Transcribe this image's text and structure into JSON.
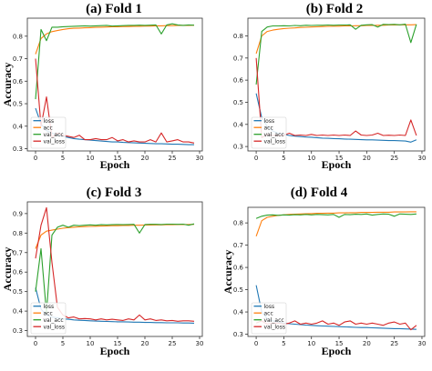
{
  "colors": {
    "loss": "#1f77b4",
    "acc": "#ff7f0e",
    "val_acc": "#2ca02c",
    "val_loss": "#d62728"
  },
  "chart_data": [
    {
      "type": "line",
      "title": "(a) Fold 1",
      "xlabel": "Epoch",
      "ylabel": "Accuracy",
      "xlim": [
        -1.5,
        30.5
      ],
      "ylim": [
        0.29,
        0.88
      ],
      "xticks": [
        0,
        5,
        10,
        15,
        20,
        25,
        30
      ],
      "yticks": [
        0.3,
        0.4,
        0.5,
        0.6,
        0.7,
        0.8
      ],
      "legend_position": "lower-left",
      "x": [
        0,
        1,
        2,
        3,
        4,
        5,
        6,
        7,
        8,
        9,
        10,
        11,
        12,
        13,
        14,
        15,
        16,
        17,
        18,
        19,
        20,
        21,
        22,
        23,
        24,
        25,
        26,
        27,
        28,
        29
      ],
      "series": [
        {
          "name": "loss",
          "values": [
            0.48,
            0.41,
            0.38,
            0.37,
            0.36,
            0.355,
            0.35,
            0.345,
            0.342,
            0.34,
            0.338,
            0.336,
            0.334,
            0.332,
            0.33,
            0.33,
            0.328,
            0.327,
            0.326,
            0.325,
            0.324,
            0.323,
            0.322,
            0.322,
            0.321,
            0.32,
            0.32,
            0.319,
            0.318,
            0.318
          ]
        },
        {
          "name": "acc",
          "values": [
            0.72,
            0.79,
            0.81,
            0.82,
            0.825,
            0.83,
            0.833,
            0.835,
            0.836,
            0.837,
            0.838,
            0.839,
            0.84,
            0.841,
            0.842,
            0.842,
            0.843,
            0.843,
            0.844,
            0.844,
            0.845,
            0.845,
            0.846,
            0.846,
            0.847,
            0.847,
            0.848,
            0.848,
            0.848,
            0.849
          ]
        },
        {
          "name": "val_acc",
          "values": [
            0.52,
            0.83,
            0.78,
            0.84,
            0.84,
            0.842,
            0.843,
            0.844,
            0.845,
            0.846,
            0.845,
            0.846,
            0.847,
            0.848,
            0.845,
            0.846,
            0.847,
            0.848,
            0.848,
            0.849,
            0.848,
            0.849,
            0.85,
            0.81,
            0.85,
            0.855,
            0.85,
            0.848,
            0.85,
            0.849
          ]
        },
        {
          "name": "val_loss",
          "values": [
            0.7,
            0.4,
            0.53,
            0.35,
            0.37,
            0.36,
            0.355,
            0.35,
            0.36,
            0.34,
            0.34,
            0.345,
            0.34,
            0.34,
            0.35,
            0.335,
            0.34,
            0.33,
            0.335,
            0.33,
            0.33,
            0.34,
            0.33,
            0.37,
            0.33,
            0.335,
            0.34,
            0.33,
            0.33,
            0.325
          ]
        }
      ]
    },
    {
      "type": "line",
      "title": "(b) Fold 2",
      "xlabel": "Epoch",
      "ylabel": "",
      "xlim": [
        -1.5,
        30.5
      ],
      "ylim": [
        0.28,
        0.88
      ],
      "xticks": [
        0,
        5,
        10,
        15,
        20,
        25,
        30
      ],
      "yticks": [
        0.3,
        0.4,
        0.5,
        0.6,
        0.7,
        0.8
      ],
      "legend_position": "lower-left",
      "x": [
        0,
        1,
        2,
        3,
        4,
        5,
        6,
        7,
        8,
        9,
        10,
        11,
        12,
        13,
        14,
        15,
        16,
        17,
        18,
        19,
        20,
        21,
        22,
        23,
        24,
        25,
        26,
        27,
        28,
        29
      ],
      "series": [
        {
          "name": "loss",
          "values": [
            0.54,
            0.43,
            0.39,
            0.37,
            0.36,
            0.355,
            0.35,
            0.347,
            0.345,
            0.343,
            0.342,
            0.34,
            0.338,
            0.337,
            0.336,
            0.335,
            0.334,
            0.333,
            0.332,
            0.331,
            0.33,
            0.33,
            0.329,
            0.328,
            0.327,
            0.327,
            0.326,
            0.325,
            0.32,
            0.33
          ]
        },
        {
          "name": "acc",
          "values": [
            0.72,
            0.8,
            0.82,
            0.826,
            0.83,
            0.833,
            0.835,
            0.836,
            0.838,
            0.839,
            0.84,
            0.841,
            0.842,
            0.843,
            0.844,
            0.844,
            0.845,
            0.845,
            0.846,
            0.846,
            0.847,
            0.847,
            0.848,
            0.848,
            0.849,
            0.849,
            0.85,
            0.85,
            0.85,
            0.851
          ]
        },
        {
          "name": "val_acc",
          "values": [
            0.58,
            0.82,
            0.84,
            0.845,
            0.845,
            0.846,
            0.845,
            0.847,
            0.846,
            0.848,
            0.847,
            0.848,
            0.848,
            0.849,
            0.848,
            0.849,
            0.849,
            0.85,
            0.83,
            0.848,
            0.85,
            0.851,
            0.84,
            0.852,
            0.851,
            0.852,
            0.85,
            0.853,
            0.77,
            0.852
          ]
        },
        {
          "name": "val_loss",
          "values": [
            0.7,
            0.34,
            0.355,
            0.35,
            0.35,
            0.352,
            0.36,
            0.35,
            0.352,
            0.35,
            0.355,
            0.35,
            0.352,
            0.35,
            0.352,
            0.35,
            0.352,
            0.35,
            0.37,
            0.352,
            0.35,
            0.352,
            0.36,
            0.35,
            0.351,
            0.35,
            0.352,
            0.35,
            0.42,
            0.35
          ]
        }
      ]
    },
    {
      "type": "line",
      "title": "(c) Fold 3",
      "xlabel": "Epoch",
      "ylabel": "Accuracy",
      "xlim": [
        -1.5,
        30.5
      ],
      "ylim": [
        0.27,
        0.96
      ],
      "xticks": [
        0,
        5,
        10,
        15,
        20,
        25,
        30
      ],
      "yticks": [
        0.3,
        0.4,
        0.5,
        0.6,
        0.7,
        0.8,
        0.9
      ],
      "legend_position": "lower-left",
      "x": [
        0,
        1,
        2,
        3,
        4,
        5,
        6,
        7,
        8,
        9,
        10,
        11,
        12,
        13,
        14,
        15,
        16,
        17,
        18,
        19,
        20,
        21,
        22,
        23,
        24,
        25,
        26,
        27,
        28,
        29
      ],
      "series": [
        {
          "name": "loss",
          "values": [
            0.52,
            0.41,
            0.38,
            0.37,
            0.365,
            0.36,
            0.358,
            0.355,
            0.353,
            0.352,
            0.35,
            0.349,
            0.348,
            0.347,
            0.346,
            0.345,
            0.345,
            0.344,
            0.343,
            0.343,
            0.342,
            0.342,
            0.341,
            0.341,
            0.34,
            0.34,
            0.34,
            0.339,
            0.339,
            0.338
          ]
        },
        {
          "name": "acc",
          "values": [
            0.72,
            0.79,
            0.81,
            0.815,
            0.82,
            0.825,
            0.828,
            0.83,
            0.832,
            0.833,
            0.834,
            0.835,
            0.836,
            0.837,
            0.838,
            0.838,
            0.839,
            0.839,
            0.84,
            0.84,
            0.841,
            0.841,
            0.842,
            0.842,
            0.843,
            0.843,
            0.844,
            0.844,
            0.844,
            0.845
          ]
        },
        {
          "name": "val_acc",
          "values": [
            0.5,
            0.72,
            0.39,
            0.79,
            0.83,
            0.84,
            0.83,
            0.84,
            0.838,
            0.84,
            0.842,
            0.84,
            0.843,
            0.842,
            0.843,
            0.844,
            0.843,
            0.844,
            0.845,
            0.8,
            0.844,
            0.845,
            0.845,
            0.844,
            0.846,
            0.846,
            0.845,
            0.846,
            0.84,
            0.847
          ]
        },
        {
          "name": "val_loss",
          "values": [
            0.67,
            0.84,
            0.93,
            0.65,
            0.42,
            0.38,
            0.365,
            0.37,
            0.36,
            0.362,
            0.36,
            0.355,
            0.36,
            0.355,
            0.358,
            0.355,
            0.352,
            0.36,
            0.355,
            0.38,
            0.355,
            0.36,
            0.352,
            0.355,
            0.35,
            0.352,
            0.348,
            0.35,
            0.35,
            0.348
          ]
        }
      ]
    },
    {
      "type": "line",
      "title": "(d) Fold 4",
      "xlabel": "Epoch",
      "ylabel": "Accuracy",
      "xlim": [
        -1.5,
        30.5
      ],
      "ylim": [
        0.29,
        0.87
      ],
      "xticks": [
        0,
        5,
        10,
        15,
        20,
        25,
        30
      ],
      "yticks": [
        0.3,
        0.4,
        0.5,
        0.6,
        0.7,
        0.8
      ],
      "legend_position": "lower-left",
      "x": [
        0,
        1,
        2,
        3,
        4,
        5,
        6,
        7,
        8,
        9,
        10,
        11,
        12,
        13,
        14,
        15,
        16,
        17,
        18,
        19,
        20,
        21,
        22,
        23,
        24,
        25,
        26,
        27,
        28,
        29
      ],
      "series": [
        {
          "name": "loss",
          "values": [
            0.52,
            0.4,
            0.37,
            0.36,
            0.355,
            0.35,
            0.347,
            0.345,
            0.343,
            0.341,
            0.34,
            0.338,
            0.337,
            0.336,
            0.335,
            0.334,
            0.333,
            0.332,
            0.331,
            0.33,
            0.33,
            0.329,
            0.328,
            0.327,
            0.326,
            0.325,
            0.325,
            0.324,
            0.323,
            0.322
          ]
        },
        {
          "name": "acc",
          "values": [
            0.74,
            0.81,
            0.825,
            0.83,
            0.834,
            0.836,
            0.838,
            0.839,
            0.84,
            0.841,
            0.842,
            0.843,
            0.843,
            0.844,
            0.844,
            0.845,
            0.845,
            0.846,
            0.846,
            0.847,
            0.847,
            0.847,
            0.848,
            0.848,
            0.848,
            0.849,
            0.849,
            0.849,
            0.85,
            0.85
          ]
        },
        {
          "name": "val_acc",
          "values": [
            0.82,
            0.83,
            0.835,
            0.836,
            0.834,
            0.836,
            0.835,
            0.837,
            0.836,
            0.838,
            0.836,
            0.838,
            0.837,
            0.836,
            0.838,
            0.825,
            0.838,
            0.837,
            0.839,
            0.838,
            0.84,
            0.835,
            0.838,
            0.84,
            0.839,
            0.83,
            0.84,
            0.839,
            0.838,
            0.84
          ]
        },
        {
          "name": "val_loss",
          "values": [
            0.35,
            0.36,
            0.345,
            0.35,
            0.35,
            0.345,
            0.35,
            0.36,
            0.345,
            0.35,
            0.345,
            0.35,
            0.36,
            0.345,
            0.35,
            0.34,
            0.355,
            0.36,
            0.345,
            0.35,
            0.345,
            0.35,
            0.345,
            0.34,
            0.35,
            0.355,
            0.345,
            0.35,
            0.32,
            0.34
          ]
        }
      ]
    }
  ]
}
